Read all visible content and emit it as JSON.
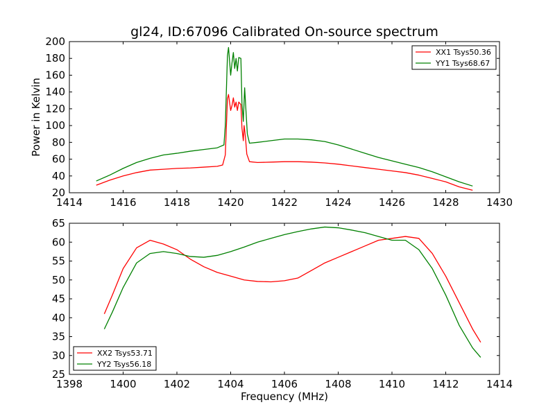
{
  "chart_data": [
    {
      "type": "line",
      "title": "gl24, ID:67096 Calibrated On-source spectrum",
      "xlabel": "",
      "ylabel": "Power in Kelvin",
      "xlim": [
        1414,
        1430
      ],
      "ylim": [
        20,
        200
      ],
      "xticks": [
        1414,
        1416,
        1418,
        1420,
        1422,
        1424,
        1426,
        1428,
        1430
      ],
      "yticks": [
        20,
        40,
        60,
        80,
        100,
        120,
        140,
        160,
        180,
        200
      ],
      "grid": false,
      "legend_position": "top-right",
      "series": [
        {
          "name": "XX1 Tsys50.36",
          "color": "#ff0000",
          "x": [
            1415.0,
            1415.5,
            1416.0,
            1416.5,
            1417.0,
            1417.5,
            1418.0,
            1418.5,
            1419.0,
            1419.5,
            1419.7,
            1419.8,
            1419.88,
            1419.92,
            1420.0,
            1420.05,
            1420.1,
            1420.15,
            1420.2,
            1420.25,
            1420.3,
            1420.38,
            1420.42,
            1420.47,
            1420.5,
            1420.55,
            1420.6,
            1420.7,
            1421.0,
            1421.5,
            1422.0,
            1422.5,
            1423.0,
            1423.5,
            1424.0,
            1424.5,
            1425.0,
            1425.5,
            1426.0,
            1426.5,
            1427.0,
            1427.5,
            1428.0,
            1428.5,
            1429.0
          ],
          "y": [
            29,
            35,
            40,
            44,
            47,
            48,
            49,
            49.5,
            50.5,
            51.5,
            53,
            65,
            132,
            137,
            118,
            124,
            133,
            122,
            128,
            118,
            128,
            125,
            97,
            82,
            100,
            86,
            66,
            57,
            56,
            56.5,
            57,
            57,
            56.5,
            55.5,
            54,
            52,
            50,
            48,
            46,
            44,
            41,
            37,
            33,
            27,
            23
          ]
        },
        {
          "name": "YY1 Tsys68.67",
          "color": "#008000",
          "x": [
            1415.0,
            1415.5,
            1416.0,
            1416.5,
            1417.0,
            1417.5,
            1418.0,
            1418.5,
            1419.0,
            1419.5,
            1419.75,
            1419.8,
            1419.88,
            1419.92,
            1420.0,
            1420.05,
            1420.1,
            1420.15,
            1420.2,
            1420.25,
            1420.3,
            1420.38,
            1420.42,
            1420.47,
            1420.52,
            1420.57,
            1420.62,
            1420.7,
            1421.0,
            1421.5,
            1422.0,
            1422.5,
            1423.0,
            1423.5,
            1424.0,
            1424.5,
            1425.0,
            1425.5,
            1426.0,
            1426.5,
            1427.0,
            1427.5,
            1428.0,
            1428.5,
            1429.0
          ],
          "y": [
            34,
            41,
            49,
            56,
            61,
            65,
            67,
            69.5,
            71.5,
            73.5,
            77,
            100,
            183,
            193,
            160,
            175,
            187,
            168,
            180,
            165,
            181,
            180,
            126,
            105,
            145,
            117,
            90,
            79,
            80,
            82,
            84,
            84,
            83,
            81,
            77,
            72,
            67,
            62,
            58,
            54,
            50,
            45,
            39,
            33,
            28
          ]
        }
      ]
    },
    {
      "type": "line",
      "title": "",
      "xlabel": "Frequency (MHz)",
      "ylabel": "",
      "xlim": [
        1398,
        1414
      ],
      "ylim": [
        25,
        65
      ],
      "xticks": [
        1398,
        1400,
        1402,
        1404,
        1406,
        1408,
        1410,
        1412,
        1414
      ],
      "yticks": [
        25,
        30,
        35,
        40,
        45,
        50,
        55,
        60,
        65
      ],
      "grid": false,
      "legend_position": "bottom-left",
      "series": [
        {
          "name": "XX2 Tsys53.71",
          "color": "#ff0000",
          "x": [
            1399.3,
            1399.6,
            1400.0,
            1400.5,
            1401.0,
            1401.5,
            1402.0,
            1402.5,
            1403.0,
            1403.5,
            1404.0,
            1404.5,
            1405.0,
            1405.5,
            1406.0,
            1406.5,
            1407.0,
            1407.5,
            1408.0,
            1408.5,
            1409.0,
            1409.5,
            1410.0,
            1410.5,
            1411.0,
            1411.5,
            1412.0,
            1412.5,
            1413.0,
            1413.3
          ],
          "y": [
            41,
            46,
            53,
            58.5,
            60.5,
            59.5,
            58,
            55.5,
            53.5,
            52,
            51,
            50,
            49.6,
            49.5,
            49.8,
            50.5,
            52.5,
            54.5,
            56,
            57.5,
            59,
            60.5,
            61,
            61.5,
            61,
            57,
            51,
            44,
            37,
            33.5
          ]
        },
        {
          "name": "YY2 Tsys56.18",
          "color": "#008000",
          "x": [
            1399.3,
            1399.6,
            1400.0,
            1400.5,
            1401.0,
            1401.5,
            1402.0,
            1402.5,
            1403.0,
            1403.5,
            1404.0,
            1404.5,
            1405.0,
            1405.5,
            1406.0,
            1406.5,
            1407.0,
            1407.5,
            1408.0,
            1408.5,
            1409.0,
            1409.5,
            1410.0,
            1410.5,
            1411.0,
            1411.5,
            1412.0,
            1412.5,
            1413.0,
            1413.3
          ],
          "y": [
            37,
            41.5,
            48,
            54.5,
            57,
            57.5,
            57,
            56.2,
            56,
            56.5,
            57.5,
            58.7,
            60,
            61,
            62,
            62.8,
            63.5,
            64,
            63.8,
            63.2,
            62.5,
            61.5,
            60.5,
            60.5,
            58,
            53,
            46,
            38,
            32,
            29.5
          ]
        }
      ]
    }
  ]
}
